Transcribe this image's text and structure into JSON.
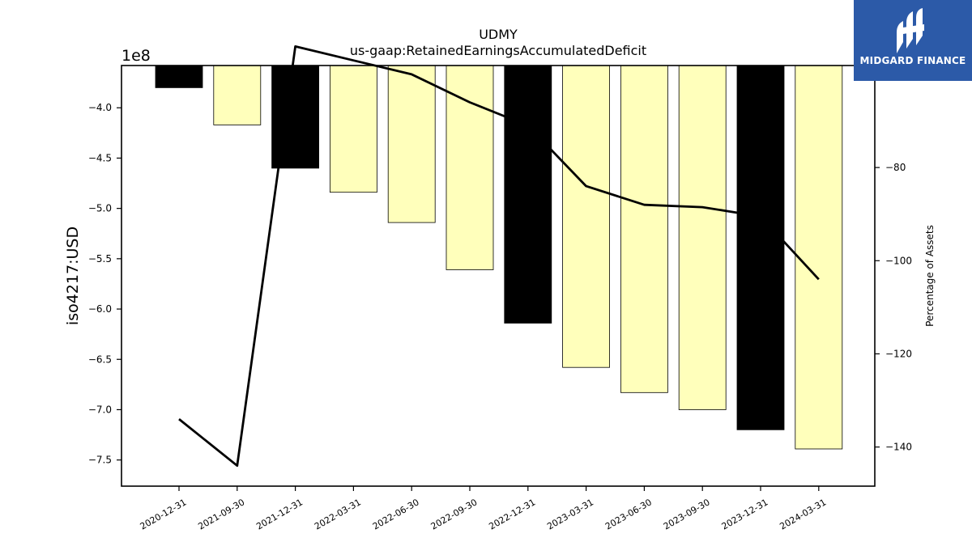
{
  "chart_data": {
    "type": "bar",
    "title": "UDMY",
    "subtitle": "us-gaap:RetainedEarningsAccumulatedDeficit",
    "ylabel": "iso4217:USD",
    "y2label": "Percentage of Assets",
    "y_offset_label": "1e8",
    "categories": [
      "2020-12-31",
      "2021-09-30",
      "2021-12-31",
      "2022-03-31",
      "2022-06-30",
      "2022-09-30",
      "2022-12-31",
      "2023-03-31",
      "2023-06-30",
      "2023-09-30",
      "2023-12-31",
      "2024-03-31"
    ],
    "series": [
      {
        "type": "bar",
        "axis": "left",
        "values": [
          -380000000,
          -417000000,
          -460000000,
          -484000000,
          -514000000,
          -561000000,
          -614000000,
          -658000000,
          -683000000,
          -700000000,
          -720000000,
          -739000000
        ],
        "colors": [
          "#000000",
          "#ffffbb",
          "#000000",
          "#ffffbb",
          "#ffffbb",
          "#ffffbb",
          "#000000",
          "#ffffbb",
          "#ffffbb",
          "#ffffbb",
          "#000000",
          "#ffffbb"
        ]
      },
      {
        "type": "line",
        "axis": "right",
        "values": [
          -134.0,
          -144.0,
          -54.0,
          -57.0,
          -60.0,
          -66.0,
          -71.0,
          -84.0,
          -88.0,
          -88.5,
          -90.5,
          -104.0
        ],
        "color": "#000000"
      }
    ],
    "ylim": [
      -776000000,
      -358000000
    ],
    "y_ticks": [
      -400000000,
      -450000000,
      -500000000,
      -550000000,
      -600000000,
      -650000000,
      -700000000,
      -750000000
    ],
    "y_tick_labels": [
      "−4.0",
      "−4.5",
      "−5.0",
      "−5.5",
      "−6.0",
      "−6.5",
      "−7.0",
      "−7.5"
    ],
    "y2lim": [
      -148.4,
      -58.1
    ],
    "y2_ticks": [
      -80,
      -100,
      -120,
      -140
    ],
    "y2_tick_labels": [
      "−80",
      "−100",
      "−120",
      "−140"
    ]
  },
  "logo": {
    "text": "MIDGARD FINANCE"
  }
}
